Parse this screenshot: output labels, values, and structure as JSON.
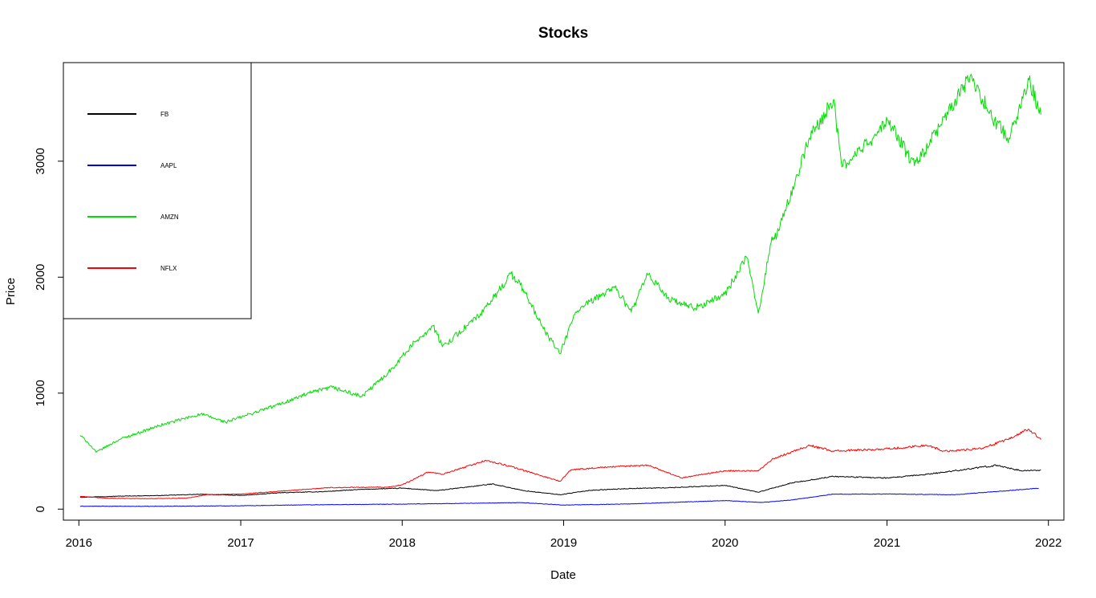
{
  "chart_data": {
    "type": "line",
    "title": "Stocks",
    "xlabel": "Date",
    "ylabel": "Price",
    "xlim": [
      "2015-11-27",
      "2022-02-05"
    ],
    "ylim": [
      -95,
      3850
    ],
    "x_ticks": [
      "2016",
      "2017",
      "2018",
      "2019",
      "2020",
      "2021",
      "2022"
    ],
    "y_ticks": [
      "0",
      "1000",
      "2000",
      "3000"
    ],
    "legend_position": "top-left",
    "series": [
      {
        "name": "FB",
        "color": "#000000",
        "x": [
          "2016-01-04",
          "2016-04-01",
          "2016-07-01",
          "2016-10-01",
          "2017-01-03",
          "2017-04-03",
          "2017-07-03",
          "2017-10-02",
          "2018-01-02",
          "2018-03-20",
          "2018-07-25",
          "2018-10-01",
          "2018-12-24",
          "2019-03-01",
          "2019-06-01",
          "2019-09-01",
          "2019-12-31",
          "2020-03-16",
          "2020-06-01",
          "2020-09-01",
          "2021-01-04",
          "2021-04-01",
          "2021-06-01",
          "2021-09-07",
          "2021-11-01",
          "2021-12-15"
        ],
        "y": [
          102,
          112,
          117,
          128,
          118,
          142,
          150,
          170,
          181,
          159,
          217,
          160,
          124,
          162,
          178,
          185,
          205,
          146,
          227,
          282,
          268,
          300,
          330,
          378,
          330,
          338
        ]
      },
      {
        "name": "AAPL",
        "color": "#0000ff",
        "x": [
          "2016-01-04",
          "2016-06-01",
          "2017-01-03",
          "2017-06-01",
          "2018-01-02",
          "2018-09-28",
          "2019-01-03",
          "2019-06-01",
          "2020-01-02",
          "2020-03-23",
          "2020-06-01",
          "2020-09-01",
          "2021-01-04",
          "2021-06-01",
          "2021-12-10"
        ],
        "y": [
          25,
          24,
          29,
          37,
          43,
          56,
          35,
          45,
          74,
          57,
          80,
          129,
          130,
          124,
          180
        ]
      },
      {
        "name": "AMZN",
        "color": "#00dd00",
        "x": [
          "2016-01-04",
          "2016-01-20",
          "2016-02-09",
          "2016-04-01",
          "2016-07-01",
          "2016-10-03",
          "2016-11-28",
          "2017-04-03",
          "2017-06-05",
          "2017-07-27",
          "2017-10-02",
          "2017-12-01",
          "2018-02-01",
          "2018-03-12",
          "2018-04-02",
          "2018-07-03",
          "2018-09-04",
          "2018-10-01",
          "2018-11-20",
          "2018-12-24",
          "2019-01-28",
          "2019-04-25",
          "2019-06-03",
          "2019-07-10",
          "2019-09-01",
          "2019-10-24",
          "2019-12-31",
          "2020-02-19",
          "2020-03-16",
          "2020-04-14",
          "2020-05-01",
          "2020-07-10",
          "2020-09-02",
          "2020-09-21",
          "2020-12-01",
          "2021-01-04",
          "2021-03-04",
          "2021-05-01",
          "2021-07-08",
          "2021-09-01",
          "2021-10-04",
          "2021-11-18",
          "2021-12-15"
        ],
        "y": [
          636,
          580,
          490,
          600,
          720,
          820,
          750,
          910,
          1000,
          1050,
          970,
          1180,
          1450,
          1580,
          1400,
          1700,
          2030,
          1900,
          1530,
          1340,
          1700,
          1920,
          1700,
          2020,
          1800,
          1730,
          1850,
          2170,
          1690,
          2300,
          2400,
          3200,
          3530,
          2950,
          3200,
          3350,
          2960,
          3300,
          3730,
          3350,
          3200,
          3700,
          3400
        ]
      },
      {
        "name": "NFLX",
        "color": "#ff0000",
        "x": [
          "2016-01-04",
          "2016-03-01",
          "2016-06-01",
          "2016-09-01",
          "2016-10-17",
          "2017-01-03",
          "2017-07-17",
          "2017-12-01",
          "2018-01-02",
          "2018-03-01",
          "2018-04-02",
          "2018-07-09",
          "2018-09-01",
          "2018-12-24",
          "2019-01-18",
          "2019-04-01",
          "2019-07-10",
          "2019-09-24",
          "2019-12-31",
          "2020-03-16",
          "2020-04-16",
          "2020-07-10",
          "2020-09-01",
          "2021-01-04",
          "2021-04-01",
          "2021-05-12",
          "2021-08-01",
          "2021-10-01",
          "2021-11-17",
          "2021-12-15"
        ],
        "y": [
          110,
          95,
          90,
          95,
          125,
          130,
          185,
          190,
          210,
          320,
          300,
          420,
          370,
          240,
          340,
          360,
          380,
          270,
          330,
          330,
          430,
          550,
          500,
          520,
          550,
          500,
          520,
          600,
          690,
          600
        ]
      }
    ]
  }
}
